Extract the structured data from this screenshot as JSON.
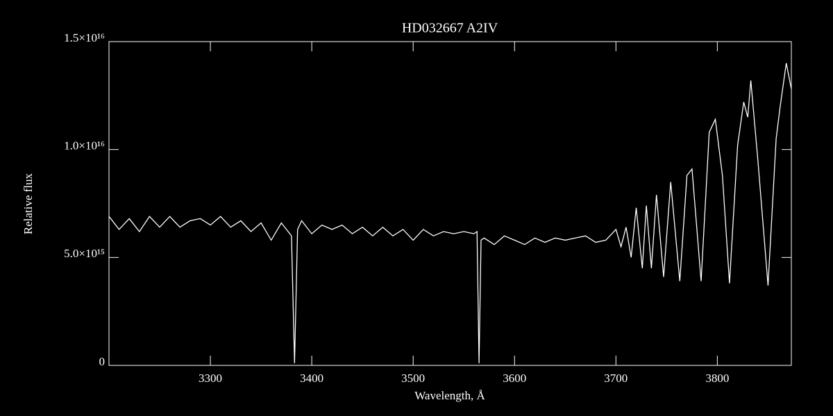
{
  "chart_data": {
    "type": "line",
    "title": "HD032667   A2IV",
    "xlabel": "Wavelength, Å",
    "ylabel": "Relative flux",
    "x": [
      3200,
      3210,
      3220,
      3230,
      3240,
      3250,
      3260,
      3270,
      3280,
      3290,
      3300,
      3310,
      3320,
      3330,
      3340,
      3350,
      3360,
      3370,
      3380,
      3383,
      3386,
      3390,
      3400,
      3410,
      3420,
      3430,
      3440,
      3450,
      3460,
      3470,
      3480,
      3490,
      3500,
      3510,
      3520,
      3530,
      3540,
      3550,
      3560,
      3563,
      3565,
      3567,
      3570,
      3580,
      3590,
      3600,
      3610,
      3620,
      3630,
      3640,
      3650,
      3660,
      3670,
      3680,
      3690,
      3700,
      3705,
      3710,
      3715,
      3720,
      3726,
      3730,
      3735,
      3740,
      3747,
      3754,
      3763,
      3770,
      3775,
      3784,
      3792,
      3798,
      3805,
      3812,
      3820,
      3826,
      3830,
      3833,
      3840,
      3850,
      3858,
      3862,
      3868,
      3873
    ],
    "series": [
      {
        "name": "flux",
        "color": "#ffffff",
        "values": [
          6900000000000000.0,
          6300000000000000.0,
          6800000000000000.0,
          6200000000000000.0,
          6900000000000000.0,
          6400000000000000.0,
          6900000000000000.0,
          6400000000000000.0,
          6700000000000000.0,
          6800000000000000.0,
          6500000000000000.0,
          6900000000000000.0,
          6400000000000000.0,
          6700000000000000.0,
          6200000000000000.0,
          6600000000000000.0,
          5800000000000000.0,
          6600000000000000.0,
          6000000000000000.0,
          100000000000000.0,
          6300000000000000.0,
          6700000000000000.0,
          6100000000000000.0,
          6500000000000000.0,
          6300000000000000.0,
          6500000000000000.0,
          6100000000000000.0,
          6400000000000000.0,
          6000000000000000.0,
          6400000000000000.0,
          6000000000000000.0,
          6300000000000000.0,
          5800000000000000.0,
          6300000000000000.0,
          6000000000000000.0,
          6200000000000000.0,
          6100000000000000.0,
          6200000000000000.0,
          6100000000000000.0,
          6200000000000000.0,
          100000000000000.0,
          5800000000000000.0,
          5900000000000000.0,
          5600000000000000.0,
          6000000000000000.0,
          5800000000000000.0,
          5600000000000000.0,
          5900000000000000.0,
          5700000000000000.0,
          5900000000000000.0,
          5800000000000000.0,
          5900000000000000.0,
          6000000000000000.0,
          5700000000000000.0,
          5800000000000000.0,
          6300000000000000.0,
          5500000000000000.0,
          6400000000000000.0,
          5000000000000000.0,
          7300000000000000.0,
          4500000000000000.0,
          7400000000000000.0,
          4500000000000000.0,
          7900000000000000.0,
          4100000000000000.0,
          8500000000000000.0,
          3900000000000000.0,
          8800000000000000.0,
          9100000000000000.0,
          3900000000000000.0,
          1.08e+16,
          1.14e+16,
          8800000000000000.0,
          3800000000000000.0,
          1.02e+16,
          1.22e+16,
          1.15e+16,
          1.32e+16,
          9500000000000000.0,
          3700000000000000.0,
          1.05e+16,
          1.2e+16,
          1.4e+16,
          1.28e+16
        ]
      }
    ],
    "xlim": [
      3200,
      3873
    ],
    "ylim": [
      0,
      1.5e+16
    ],
    "xticks": [
      3300,
      3400,
      3500,
      3600,
      3700,
      3800
    ],
    "yticks": [
      0,
      {
        "value": 5000000000000000.0,
        "label": "5.0×10¹⁵"
      },
      {
        "value": 1e+16,
        "label": "1.0×10¹⁶"
      },
      {
        "value": 1.5e+16,
        "label": "1.5×10¹⁶"
      }
    ]
  }
}
